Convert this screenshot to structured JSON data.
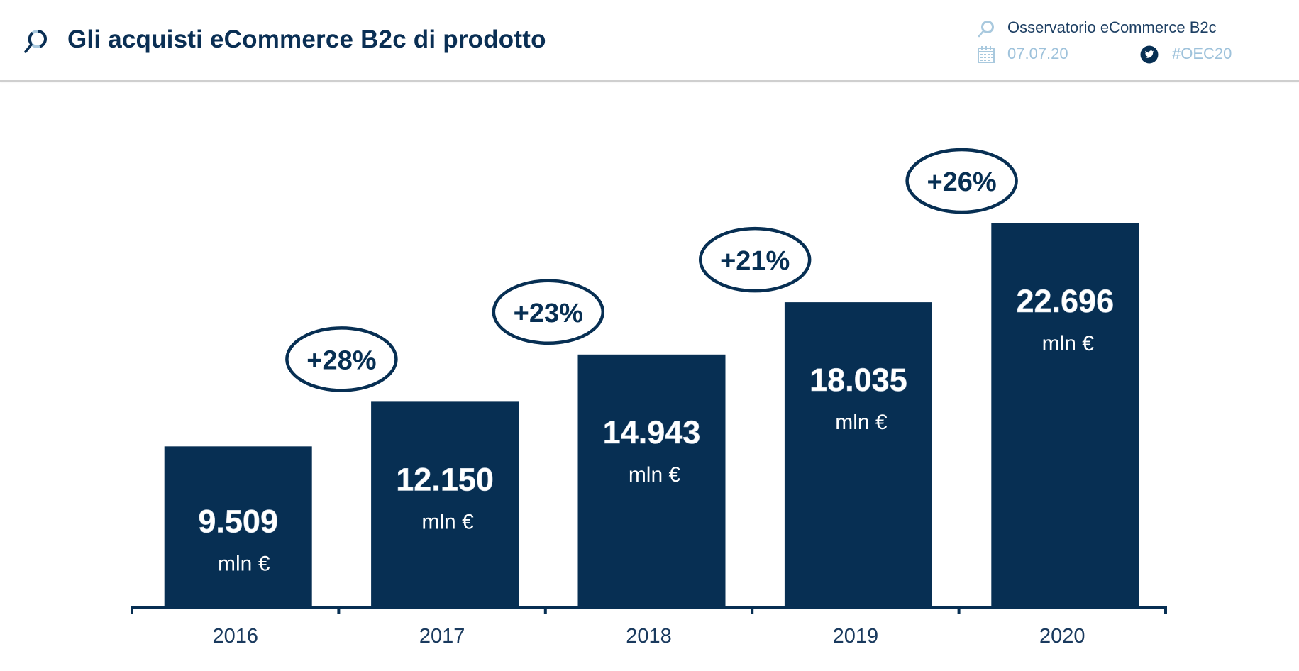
{
  "header": {
    "title": "Gli acquisti eCommerce B2c di prodotto",
    "logo_icon": "magnifier-logo-icon",
    "organization": "Osservatorio eCommerce B2c",
    "date": "07.07.20",
    "hashtag": "#OEC20",
    "org_icon": "magnifier-logo-icon",
    "date_icon": "calendar-icon",
    "hashtag_icon": "twitter-icon"
  },
  "colors": {
    "bar": "#072f53",
    "title": "#0a2f54",
    "meta_light": "#9ec2db",
    "bar_label": "#ffffff"
  },
  "chart_data": {
    "type": "bar",
    "title": "Gli acquisti eCommerce B2c di prodotto",
    "xlabel": "",
    "ylabel": "",
    "unit": "mln €",
    "categories": [
      "2016",
      "2017",
      "2018",
      "2019",
      "2020"
    ],
    "values": [
      9509,
      12150,
      14943,
      18035,
      22696
    ],
    "value_labels": [
      "9.509",
      "12.150",
      "14.943",
      "18.035",
      "22.696"
    ],
    "unit_labels": [
      "mln €",
      "mln €",
      "mln €",
      "mln €",
      "mln €"
    ],
    "growth": [
      {
        "between": [
          "2016",
          "2017"
        ],
        "label": "+28%"
      },
      {
        "between": [
          "2017",
          "2018"
        ],
        "label": "+23%"
      },
      {
        "between": [
          "2018",
          "2019"
        ],
        "label": "+21%"
      },
      {
        "between": [
          "2019",
          "2020"
        ],
        "label": "+26%"
      }
    ],
    "ylim": [
      0,
      22696
    ],
    "grid": false,
    "legend": "none"
  }
}
